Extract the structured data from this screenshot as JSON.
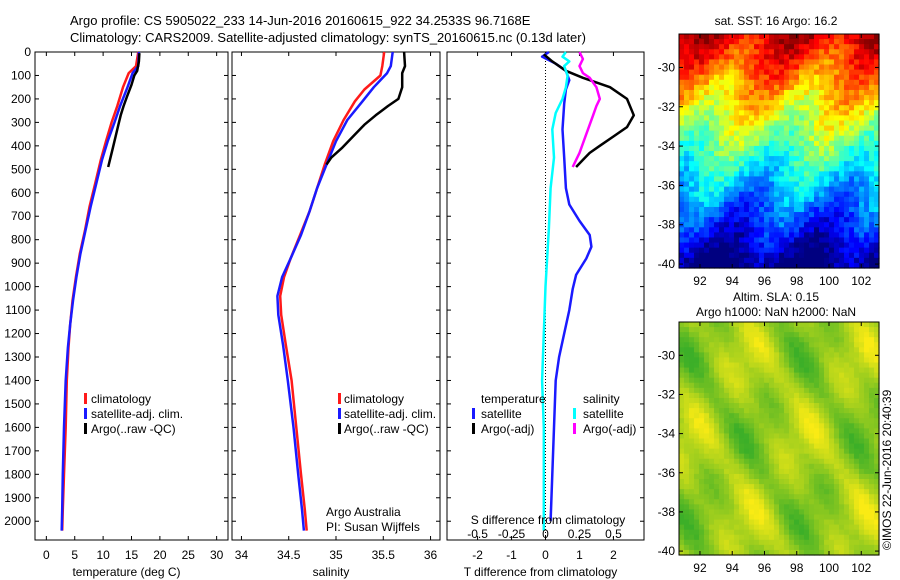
{
  "header": {
    "line1": "Argo profile: CS 5905022_233 14-Jun-2016 20160615_922 34.2533S 96.7168E",
    "line2": "Climatology: CARS2009. Satellite-adjusted climatology: synTS_20160615.nc (0.13d later)"
  },
  "colors": {
    "climatology": "#ff1a1a",
    "satellite": "#1a1aff",
    "argo": "#000000",
    "satellite_s": "#00ffff",
    "argo_s": "#ff00ff"
  },
  "depth_ticks": [
    "0",
    "100",
    "200",
    "300",
    "400",
    "500",
    "600",
    "700",
    "800",
    "900",
    "1000",
    "1100",
    "1200",
    "1300",
    "1400",
    "1500",
    "1600",
    "1700",
    "1800",
    "1900",
    "2000"
  ],
  "chart_data": [
    {
      "type": "line",
      "xlabel": "temperature (deg C)",
      "xticks": [
        "0",
        "5",
        "10",
        "15",
        "20",
        "25",
        "30"
      ],
      "xlim": [
        -2,
        32
      ],
      "ylim": [
        2080,
        0
      ],
      "legend": {
        "position": "lower-middle",
        "items": [
          "climatology",
          "satellite-adj. clim.",
          "Argo(..raw -QC)"
        ]
      },
      "series": [
        {
          "name": "climatology",
          "color_key": "climatology",
          "points": [
            [
              16.2,
              0
            ],
            [
              15.8,
              60
            ],
            [
              14.5,
              90
            ],
            [
              13.5,
              150
            ],
            [
              12.5,
              230
            ],
            [
              11.5,
              300
            ],
            [
              10.5,
              380
            ],
            [
              9.6,
              460
            ],
            [
              8.6,
              560
            ],
            [
              7.6,
              660
            ],
            [
              6.8,
              760
            ],
            [
              5.9,
              860
            ],
            [
              5.2,
              960
            ],
            [
              4.6,
              1060
            ],
            [
              4.2,
              1160
            ],
            [
              3.9,
              1260
            ],
            [
              3.6,
              1400
            ],
            [
              3.4,
              1600
            ],
            [
              3.1,
              1800
            ],
            [
              2.9,
              1950
            ],
            [
              2.8,
              2040
            ]
          ]
        },
        {
          "name": "satellite-adj. clim.",
          "color_key": "satellite",
          "points": [
            [
              16.3,
              0
            ],
            [
              16.2,
              60
            ],
            [
              15.2,
              90
            ],
            [
              14.3,
              150
            ],
            [
              13.0,
              230
            ],
            [
              12.0,
              300
            ],
            [
              10.8,
              380
            ],
            [
              9.8,
              460
            ],
            [
              8.8,
              560
            ],
            [
              7.8,
              660
            ],
            [
              6.9,
              760
            ],
            [
              6.0,
              860
            ],
            [
              5.3,
              960
            ],
            [
              4.7,
              1060
            ],
            [
              4.2,
              1160
            ],
            [
              3.8,
              1260
            ],
            [
              3.4,
              1400
            ],
            [
              3.1,
              1600
            ],
            [
              2.9,
              1800
            ],
            [
              2.8,
              1950
            ],
            [
              2.7,
              2040
            ]
          ]
        },
        {
          "name": "Argo(..raw -QC)",
          "color_key": "argo",
          "points": [
            [
              16.4,
              5
            ],
            [
              16.3,
              40
            ],
            [
              16.0,
              80
            ],
            [
              15.5,
              100
            ],
            [
              15.0,
              140
            ],
            [
              14.2,
              190
            ],
            [
              13.6,
              230
            ],
            [
              13.1,
              270
            ],
            [
              12.7,
              310
            ],
            [
              12.2,
              360
            ],
            [
              11.7,
              410
            ],
            [
              11.3,
              450
            ],
            [
              10.9,
              490
            ]
          ]
        }
      ]
    },
    {
      "type": "line",
      "xlabel": "salinity",
      "xticks": [
        "34",
        "34.5",
        "35",
        "35.5",
        "36"
      ],
      "xlim": [
        33.9,
        36.1
      ],
      "ylim": [
        2080,
        0
      ],
      "legend": {
        "position": "lower-right",
        "items": [
          "climatology",
          "satellite-adj. clim.",
          "Argo(..raw -QC)"
        ]
      },
      "annotation": [
        "Argo Australia",
        "PI: Susan Wijffels"
      ],
      "series": [
        {
          "name": "climatology",
          "color_key": "climatology",
          "points": [
            [
              35.51,
              0
            ],
            [
              35.49,
              60
            ],
            [
              35.47,
              100
            ],
            [
              35.3,
              160
            ],
            [
              35.2,
              210
            ],
            [
              35.08,
              290
            ],
            [
              34.97,
              380
            ],
            [
              34.88,
              480
            ],
            [
              34.8,
              580
            ],
            [
              34.72,
              680
            ],
            [
              34.62,
              780
            ],
            [
              34.52,
              880
            ],
            [
              34.45,
              960
            ],
            [
              34.41,
              1040
            ],
            [
              34.42,
              1120
            ],
            [
              34.47,
              1250
            ],
            [
              34.53,
              1400
            ],
            [
              34.58,
              1600
            ],
            [
              34.63,
              1800
            ],
            [
              34.67,
              1950
            ],
            [
              34.69,
              2040
            ]
          ]
        },
        {
          "name": "satellite-adj. clim.",
          "color_key": "satellite",
          "points": [
            [
              35.6,
              0
            ],
            [
              35.58,
              60
            ],
            [
              35.54,
              90
            ],
            [
              35.4,
              150
            ],
            [
              35.28,
              210
            ],
            [
              35.12,
              290
            ],
            [
              35.0,
              380
            ],
            [
              34.9,
              480
            ],
            [
              34.8,
              580
            ],
            [
              34.72,
              680
            ],
            [
              34.63,
              780
            ],
            [
              34.52,
              880
            ],
            [
              34.43,
              960
            ],
            [
              34.38,
              1040
            ],
            [
              34.39,
              1120
            ],
            [
              34.44,
              1250
            ],
            [
              34.49,
              1400
            ],
            [
              34.55,
              1600
            ],
            [
              34.6,
              1800
            ],
            [
              34.64,
              1950
            ],
            [
              34.66,
              2040
            ]
          ]
        },
        {
          "name": "Argo(..raw -QC)",
          "color_key": "argo",
          "points": [
            [
              35.72,
              0
            ],
            [
              35.73,
              60
            ],
            [
              35.7,
              90
            ],
            [
              35.7,
              150
            ],
            [
              35.66,
              200
            ],
            [
              35.55,
              230
            ],
            [
              35.42,
              270
            ],
            [
              35.3,
              310
            ],
            [
              35.18,
              360
            ],
            [
              35.06,
              410
            ],
            [
              34.95,
              450
            ],
            [
              34.9,
              480
            ]
          ]
        }
      ]
    },
    {
      "type": "line",
      "xlabel": "T difference from climatology",
      "xticks": [
        "-2",
        "-1",
        "0",
        "1",
        "2"
      ],
      "top_axis_label": "S difference from climatology",
      "top_ticks": [
        "-0.5",
        "-0.25",
        "0",
        "0.25",
        "0.5"
      ],
      "xlim": [
        -2.9,
        2.9
      ],
      "ylim": [
        2080,
        0
      ],
      "legend": {
        "position": "lower-middle",
        "temperature_header": "temperature",
        "salinity_header": "salinity",
        "temperature_items": [
          "satellite",
          "Argo(-adj)"
        ],
        "salinity_items": [
          "satellite",
          "Argo(-adj)"
        ]
      },
      "series": [
        {
          "name": "satellite",
          "group": "temperature",
          "color_key": "satellite",
          "points": [
            [
              0.1,
              0
            ],
            [
              -0.1,
              20
            ],
            [
              0.3,
              50
            ],
            [
              0.6,
              80
            ],
            [
              0.7,
              120
            ],
            [
              0.6,
              160
            ],
            [
              0.55,
              220
            ],
            [
              0.5,
              330
            ],
            [
              0.55,
              450
            ],
            [
              0.6,
              580
            ],
            [
              0.7,
              650
            ],
            [
              1.0,
              720
            ],
            [
              1.3,
              780
            ],
            [
              1.35,
              830
            ],
            [
              1.2,
              880
            ],
            [
              0.9,
              950
            ],
            [
              0.8,
              1010
            ],
            [
              0.7,
              1100
            ],
            [
              0.55,
              1200
            ],
            [
              0.4,
              1300
            ],
            [
              0.3,
              1400
            ],
            [
              0.25,
              1600
            ],
            [
              0.2,
              1800
            ],
            [
              0.15,
              2000
            ]
          ]
        },
        {
          "name": "Argo(-adj)",
          "group": "temperature",
          "color_key": "argo",
          "points": [
            [
              -0.05,
              10
            ],
            [
              0.2,
              40
            ],
            [
              0.6,
              80
            ],
            [
              1.1,
              110
            ],
            [
              1.9,
              150
            ],
            [
              2.4,
              200
            ],
            [
              2.6,
              270
            ],
            [
              2.4,
              320
            ],
            [
              2.0,
              360
            ],
            [
              1.6,
              400
            ],
            [
              1.3,
              430
            ],
            [
              1.1,
              460
            ],
            [
              0.9,
              490
            ]
          ]
        },
        {
          "name": "satellite",
          "group": "salinity",
          "color_key": "satellite_s",
          "points": [
            [
              0.6,
              0
            ],
            [
              0.5,
              20
            ],
            [
              0.7,
              40
            ],
            [
              0.55,
              60
            ],
            [
              0.65,
              100
            ],
            [
              0.6,
              150
            ],
            [
              0.5,
              200
            ],
            [
              0.3,
              260
            ],
            [
              0.2,
              330
            ],
            [
              0.25,
              450
            ],
            [
              0.15,
              580
            ],
            [
              0.1,
              750
            ],
            [
              0.0,
              1000
            ],
            [
              -0.05,
              1200
            ],
            [
              -0.1,
              1400
            ],
            [
              -0.05,
              1600
            ],
            [
              -0.05,
              1800
            ],
            [
              -0.05,
              2040
            ]
          ]
        },
        {
          "name": "Argo(-adj)",
          "group": "salinity",
          "color_key": "argo_s",
          "points": [
            [
              1.0,
              0
            ],
            [
              1.1,
              30
            ],
            [
              1.0,
              60
            ],
            [
              1.1,
              90
            ],
            [
              1.3,
              110
            ],
            [
              1.5,
              150
            ],
            [
              1.6,
              200
            ],
            [
              1.5,
              230
            ],
            [
              1.4,
              270
            ],
            [
              1.3,
              310
            ],
            [
              1.2,
              350
            ],
            [
              1.1,
              390
            ],
            [
              1.0,
              430
            ],
            [
              0.9,
              460
            ],
            [
              0.8,
              490
            ]
          ]
        }
      ]
    },
    {
      "type": "heatmap",
      "title": "sat. SST: 16 Argo: 16.2",
      "xticks": [
        "92",
        "94",
        "96",
        "98",
        "100",
        "102"
      ],
      "yticks": [
        "-30",
        "-32",
        "-34",
        "-36",
        "-38",
        "-40"
      ],
      "xlim": [
        90.7,
        103.1
      ],
      "ylim": [
        -40.2,
        -28.3
      ],
      "colormap": "jet"
    },
    {
      "type": "heatmap",
      "title": "Altim. SLA: 0.15",
      "subtitle": "Argo h1000: NaN h2000: NaN",
      "xticks": [
        "92",
        "94",
        "96",
        "98",
        "100",
        "102"
      ],
      "yticks": [
        "-30",
        "-32",
        "-34",
        "-36",
        "-38",
        "-40"
      ],
      "xlim": [
        90.7,
        103.1
      ],
      "ylim": [
        -40.2,
        -28.3
      ],
      "colormap": "green-yellow"
    }
  ],
  "footer": {
    "stamp": "©IMOS 22-Jun-2016 20:40:39"
  }
}
